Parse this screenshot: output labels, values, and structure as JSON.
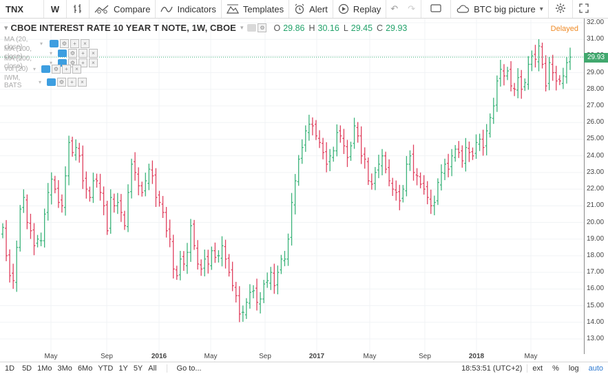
{
  "toolbar": {
    "symbol": "TNX",
    "interval": "W",
    "compare": "Compare",
    "indicators": "Indicators",
    "templates": "Templates",
    "alert": "Alert",
    "replay": "Replay",
    "layout": "BTC big picture"
  },
  "legend": {
    "title": "CBOE INTEREST RATE 10 YEAR T NOTE, 1W, CBOE",
    "o_label": "O",
    "o_value": "29.86",
    "h_label": "H",
    "h_value": "30.16",
    "l_label": "L",
    "l_value": "29.45",
    "c_label": "C",
    "c_value": "29.93",
    "delayed": "Delayed"
  },
  "indicators": [
    {
      "label": "MA (20, close)"
    },
    {
      "label": "MA (100, close)"
    },
    {
      "label": "MA (200, close)"
    },
    {
      "label": "Vol (20)"
    },
    {
      "label": "IWM, BATS"
    }
  ],
  "price_scale": {
    "ticks": [
      "32.00",
      "31.00",
      "30.00",
      "29.00",
      "28.00",
      "27.00",
      "26.00",
      "25.00",
      "24.00",
      "23.00",
      "22.00",
      "21.00",
      "20.00",
      "19.00",
      "18.00",
      "17.00",
      "16.00",
      "15.00",
      "14.00",
      "13.00"
    ],
    "last": "29.93"
  },
  "time_scale": {
    "ticks": [
      {
        "label": "May",
        "bold": false
      },
      {
        "label": "Sep",
        "bold": false
      },
      {
        "label": "2016",
        "bold": true
      },
      {
        "label": "May",
        "bold": false
      },
      {
        "label": "Sep",
        "bold": false
      },
      {
        "label": "2017",
        "bold": true
      },
      {
        "label": "May",
        "bold": false
      },
      {
        "label": "Sep",
        "bold": false
      },
      {
        "label": "2018",
        "bold": true
      },
      {
        "label": "May",
        "bold": false
      }
    ]
  },
  "bottombar": {
    "ranges": [
      "1D",
      "5D",
      "1Mo",
      "3Mo",
      "6Mo",
      "YTD",
      "1Y",
      "5Y",
      "All"
    ],
    "goto": "Go to...",
    "time": "18:53:51 (UTC+2)",
    "ext": "ext",
    "pct": "%",
    "log": "log",
    "auto": "auto"
  },
  "colors": {
    "up": "#3bb37a",
    "down": "#e0405e",
    "last_price_bg": "#41a86e",
    "delayed": "#ef8a24",
    "accent": "#2e7ad1"
  },
  "chart_data": {
    "type": "ohlc",
    "title": "CBOE INTEREST RATE 10 YEAR T NOTE, 1W, CBOE",
    "ylim": [
      12.5,
      32.2
    ],
    "x_ticks": [
      "May",
      "Sep",
      "2016",
      "May",
      "Sep",
      "2017",
      "May",
      "Sep",
      "2018",
      "May"
    ],
    "series": [
      {
        "values": [
          19.7,
          18.0,
          16.8,
          16.5,
          18.5,
          20.8,
          21.5,
          20.0,
          19.5,
          18.6,
          19.0,
          18.9,
          20.5,
          21.8,
          22.6,
          22.0,
          21.2,
          21.0,
          22.8,
          24.8,
          24.2,
          24.5,
          24.0,
          22.5,
          22.0,
          21.5,
          22.5,
          22.5,
          21.8,
          21.0,
          19.5,
          21.5,
          21.0,
          21.2,
          20.6,
          19.8,
          21.8,
          23.5,
          23.0,
          22.2,
          21.8,
          22.5,
          23.2,
          22.8,
          21.5,
          21.2,
          20.6,
          19.5,
          19.0,
          17.2,
          16.8,
          17.8,
          17.5,
          18.2,
          19.8,
          18.6,
          17.5,
          17.2,
          17.8,
          17.5,
          18.3,
          17.9,
          18.0,
          18.6,
          17.8,
          17.0,
          16.2,
          15.6,
          14.5,
          14.6,
          15.2,
          15.8,
          15.9,
          15.2,
          15.4,
          16.3,
          16.5,
          17.0,
          16.2,
          17.0,
          17.8,
          17.8,
          19.0,
          21.2,
          22.5,
          23.8,
          24.5,
          25.5,
          25.9,
          25.8,
          25.2,
          24.8,
          24.2,
          23.5,
          24.0,
          24.3,
          25.4,
          25.2,
          24.6,
          23.9,
          24.6,
          25.8,
          25.2,
          24.0,
          23.8,
          22.5,
          22.3,
          23.0,
          23.5,
          24.0,
          23.2,
          22.5,
          22.0,
          21.8,
          21.3,
          22.0,
          23.5,
          24.0,
          23.0,
          22.8,
          22.3,
          22.0,
          21.5,
          21.0,
          21.2,
          22.4,
          23.0,
          23.5,
          23.2,
          24.0,
          24.4,
          24.2,
          23.7,
          24.5,
          24.2,
          24.0,
          24.8,
          25.0,
          24.5,
          25.5,
          26.3,
          27.0,
          28.5,
          29.2,
          28.8,
          29.1,
          28.2,
          28.0,
          28.7,
          28.0,
          28.4,
          29.5,
          30.0,
          29.8,
          30.6,
          29.5,
          28.2,
          29.6,
          29.0,
          28.5,
          28.5,
          28.8,
          29.6,
          29.93
        ]
      }
    ]
  }
}
